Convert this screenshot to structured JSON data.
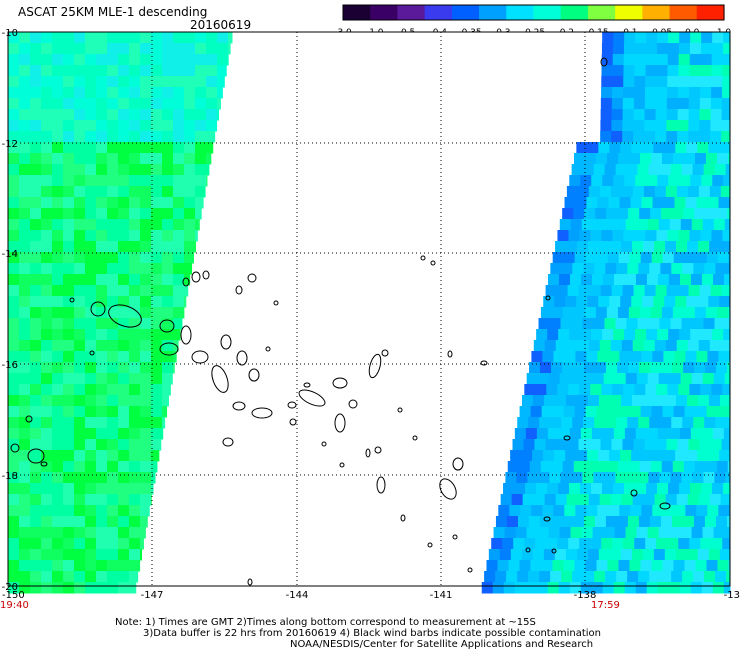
{
  "header": {
    "product_title": "ASCAT 25KM MLE-1 descending",
    "date": "20160619"
  },
  "colorbar": {
    "tick_labels": [
      "-3.0",
      "-1.0",
      "-0.5",
      "-0.4",
      "-0.35",
      "-0.3",
      "-0.25",
      "-0.2",
      "-0.15",
      "-0.1",
      "-0.05",
      "0.0",
      "1.0"
    ],
    "colors": [
      "#1a0033",
      "#3a0066",
      "#5a1a9a",
      "#3a3aee",
      "#0060ff",
      "#00a0ff",
      "#00e0ff",
      "#00ffd8",
      "#00ff80",
      "#80ff40",
      "#f0ff00",
      "#ffb000",
      "#ff5a00",
      "#ff2000"
    ]
  },
  "axes": {
    "lat_labels": [
      "-10",
      "-12",
      "-14",
      "-16",
      "-18",
      "-20"
    ],
    "lon_labels": [
      "-150",
      "-147",
      "-144",
      "-141",
      "-138",
      "-13"
    ],
    "lat_range": [
      -20,
      -10
    ],
    "lon_range": [
      -150,
      -135
    ],
    "time_left": "19:40",
    "time_right": "17:59",
    "time_color": "#cc0000",
    "grid": "dotted"
  },
  "footer": {
    "line1": "Note: 1) Times are GMT 2)Times along bottom correspond to measurement at ~15S",
    "line2": "3)Data buffer is 22 hrs from 20160619 4) Black wind barbs indicate possible contamination",
    "line3": "NOAA/NESDIS/Center for Satellite Applications and Research"
  },
  "swaths": {
    "west_palette": [
      "#00ff40",
      "#10ff60",
      "#20ff80",
      "#00ffa0",
      "#20ffb0"
    ],
    "east_palette": [
      "#00d8ff",
      "#00c8ff",
      "#00b0ff",
      "#20e8ff",
      "#00ffd0",
      "#00ffb0"
    ]
  }
}
